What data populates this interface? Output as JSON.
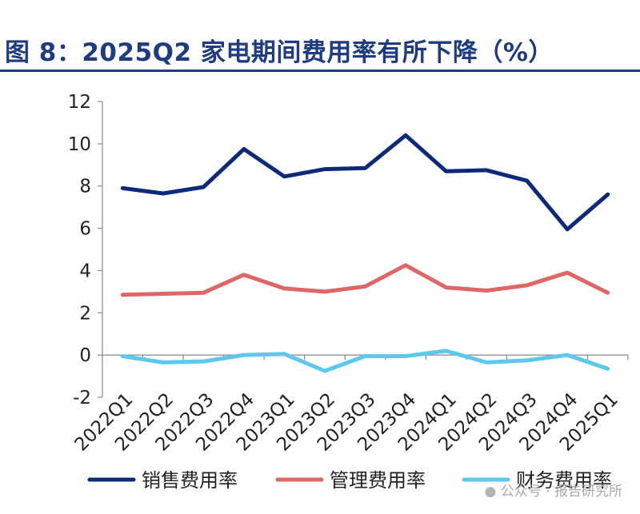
{
  "title": "图 8：2025Q2 家电期间费用率有所下降（%）",
  "watermark": "公众号 · 报告研究所",
  "chart_data": {
    "type": "line",
    "title": "图 8：2025Q2 家电期间费用率有所下降（%）",
    "xlabel": "",
    "ylabel": "",
    "categories": [
      "2022Q1",
      "2022Q2",
      "2022Q3",
      "2022Q4",
      "2023Q1",
      "2023Q2",
      "2023Q3",
      "2023Q4",
      "2024Q1",
      "2024Q2",
      "2024Q3",
      "2024Q4",
      "2025Q1"
    ],
    "ylim": [
      -2,
      12
    ],
    "yticks": [
      "12",
      "10",
      "8",
      "6",
      "4",
      "2",
      "0",
      "-2"
    ],
    "grid": false,
    "legend_position": "bottom",
    "series": [
      {
        "name": "销售费用率",
        "color": "#0d2a7a",
        "values": [
          7.9,
          7.65,
          7.95,
          9.75,
          8.45,
          8.8,
          8.85,
          10.4,
          8.7,
          8.75,
          8.25,
          5.95,
          7.6
        ]
      },
      {
        "name": "管理费用率",
        "color": "#e06565",
        "values": [
          2.85,
          2.9,
          2.95,
          3.8,
          3.15,
          3.0,
          3.25,
          4.25,
          3.2,
          3.05,
          3.3,
          3.9,
          2.95
        ]
      },
      {
        "name": "财务费用率",
        "color": "#5cc8ee",
        "values": [
          -0.05,
          -0.35,
          -0.3,
          0.0,
          0.05,
          -0.75,
          -0.05,
          -0.05,
          0.2,
          -0.35,
          -0.25,
          0.0,
          -0.65
        ]
      }
    ]
  }
}
